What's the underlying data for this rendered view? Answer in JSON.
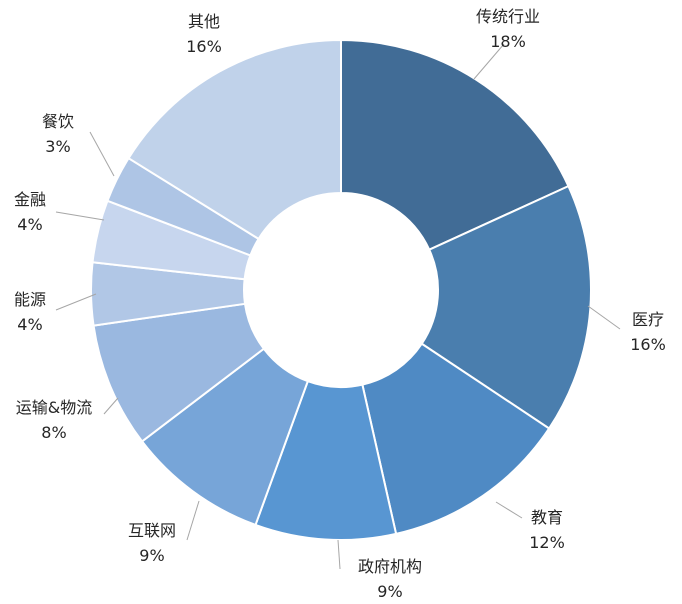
{
  "chart_data": {
    "type": "pie",
    "variant": "donut",
    "categories": [
      "传统行业",
      "医疗",
      "教育",
      "政府机构",
      "互联网",
      "运输&物流",
      "能源",
      "金融",
      "餐饮",
      "其他"
    ],
    "values": [
      18,
      16,
      12,
      9,
      9,
      8,
      4,
      4,
      3,
      16
    ],
    "value_labels": [
      "18%",
      "16%",
      "12%",
      "9%",
      "9%",
      "8%",
      "4%",
      "4%",
      "3%",
      "16%"
    ],
    "colors": [
      "#416c96",
      "#4a7eae",
      "#4f8ac4",
      "#5896d2",
      "#77a5d8",
      "#9ab8e0",
      "#b1c7e6",
      "#c7d6ee",
      "#aec5e5",
      "#c0d2ea"
    ],
    "legend": "none",
    "start": "top",
    "direction": "clockwise"
  }
}
